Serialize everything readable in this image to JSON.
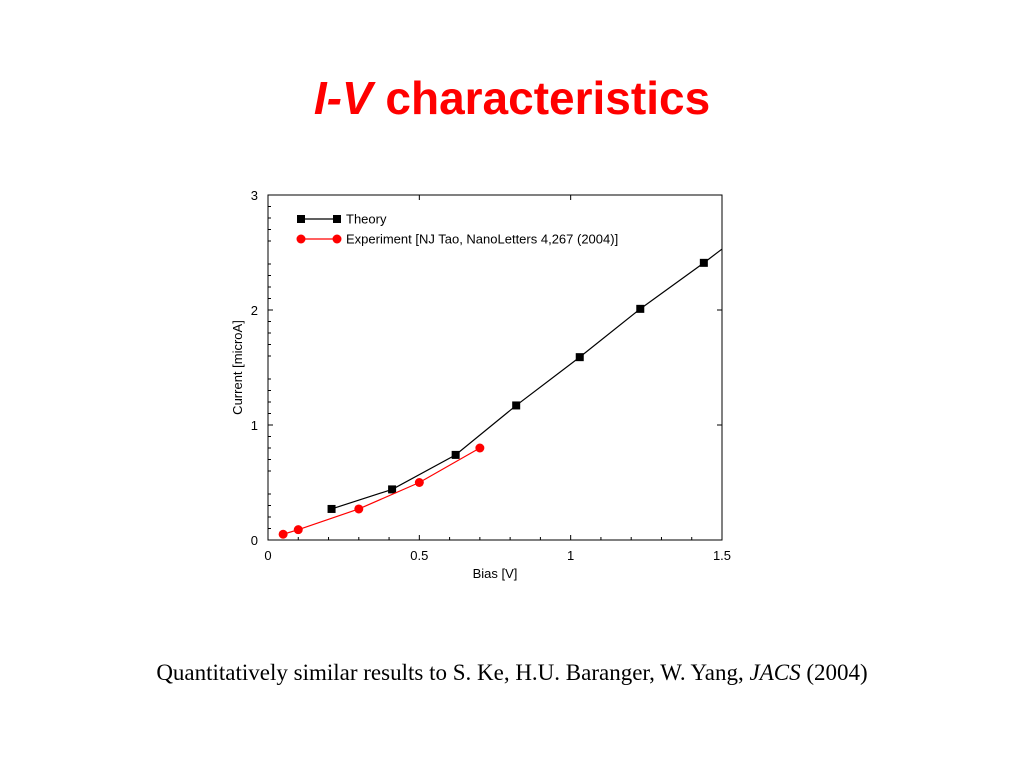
{
  "slide": {
    "title_italic": "I-V",
    "title_rest": " characteristics",
    "caption_main": "Quantitatively similar results to S. Ke, H.U. Baranger, W. Yang, ",
    "caption_journal": "JACS",
    "caption_year": " (2004)"
  },
  "chart_data": {
    "type": "line",
    "xlabel": "Bias [V]",
    "ylabel": "Current [microA]",
    "xlim": [
      0,
      1.5
    ],
    "ylim": [
      0,
      3
    ],
    "xticks": [
      "0",
      "0.5",
      "1",
      "1.5"
    ],
    "yticks": [
      "0",
      "1",
      "2",
      "3"
    ],
    "grid": false,
    "legend_position": "top-left",
    "series": [
      {
        "name": "Theory",
        "color": "#000000",
        "marker": "square",
        "x": [
          0.21,
          0.41,
          0.62,
          0.82,
          1.03,
          1.23,
          1.44
        ],
        "y": [
          0.27,
          0.44,
          0.74,
          1.17,
          1.59,
          2.01,
          2.41
        ],
        "line_extends_to": [
          1.5,
          2.53
        ]
      },
      {
        "name": "Experiment [NJ Tao, NanoLetters 4,267 (2004)]",
        "color": "#ff0000",
        "marker": "circle",
        "x": [
          0.05,
          0.1,
          0.3,
          0.5,
          0.7
        ],
        "y": [
          0.05,
          0.09,
          0.27,
          0.5,
          0.8
        ]
      }
    ]
  }
}
